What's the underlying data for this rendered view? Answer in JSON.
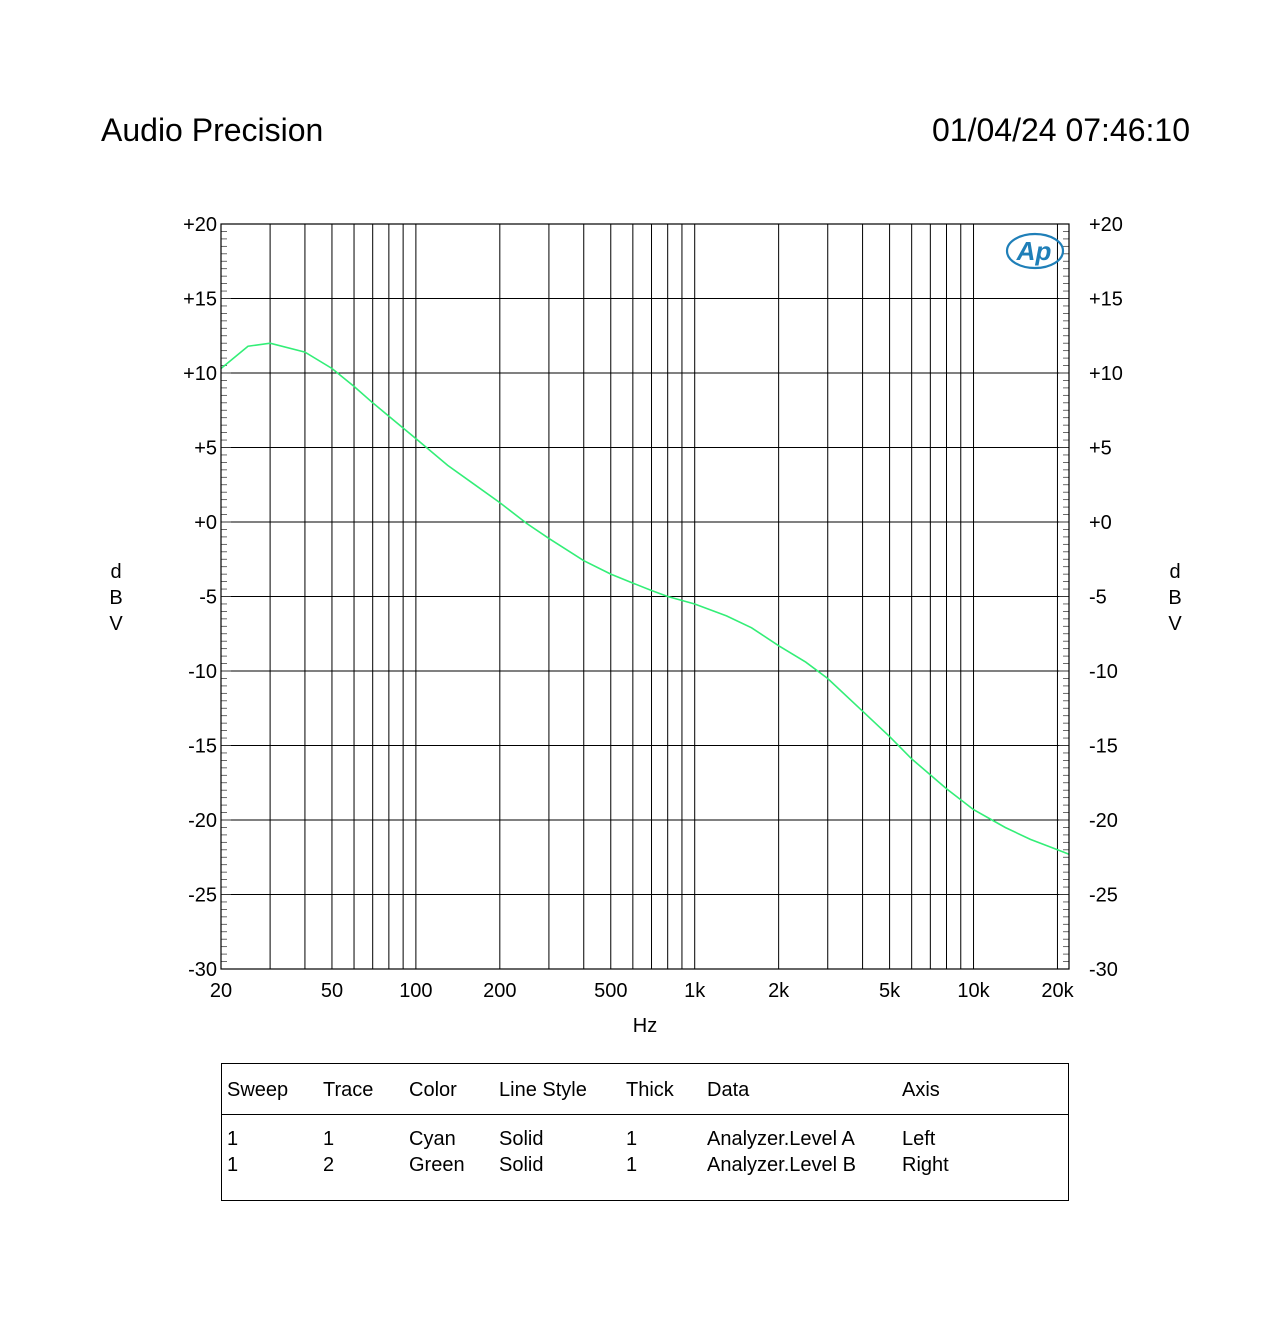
{
  "header": {
    "title": "Audio Precision",
    "datetime": "01/04/24 07:46:10"
  },
  "logo_text": "Ap",
  "chart_data": {
    "type": "line",
    "x_scale": "log",
    "xlim": [
      20,
      22000
    ],
    "ylim": [
      -30,
      20
    ],
    "xlabel": "Hz",
    "ylabel_left": "dBV",
    "ylabel_right": "dBV",
    "grid": true,
    "x_tick_labels": [
      {
        "value": 20,
        "label": "20"
      },
      {
        "value": 50,
        "label": "50"
      },
      {
        "value": 100,
        "label": "100"
      },
      {
        "value": 200,
        "label": "200"
      },
      {
        "value": 500,
        "label": "500"
      },
      {
        "value": 1000,
        "label": "1k"
      },
      {
        "value": 2000,
        "label": "2k"
      },
      {
        "value": 5000,
        "label": "5k"
      },
      {
        "value": 10000,
        "label": "10k"
      },
      {
        "value": 20000,
        "label": "20k"
      }
    ],
    "y_tick_labels": [
      {
        "value": 20,
        "label": "+20"
      },
      {
        "value": 15,
        "label": "+15"
      },
      {
        "value": 10,
        "label": "+10"
      },
      {
        "value": 5,
        "label": "+5"
      },
      {
        "value": 0,
        "label": "+0"
      },
      {
        "value": -5,
        "label": "-5"
      },
      {
        "value": -10,
        "label": "-10"
      },
      {
        "value": -15,
        "label": "-15"
      },
      {
        "value": -20,
        "label": "-20"
      },
      {
        "value": -25,
        "label": "-25"
      },
      {
        "value": -30,
        "label": "-30"
      }
    ],
    "series": [
      {
        "color": "#33ee77",
        "x": [
          20,
          25,
          30,
          40,
          50,
          60,
          70,
          80,
          100,
          130,
          160,
          200,
          250,
          300,
          400,
          500,
          600,
          700,
          800,
          1000,
          1300,
          1600,
          2000,
          2500,
          3000,
          4000,
          5000,
          6000,
          8000,
          10000,
          13000,
          16000,
          20000,
          22000
        ],
        "y": [
          10.3,
          11.8,
          12.0,
          11.4,
          10.3,
          9.1,
          8.0,
          7.1,
          5.6,
          3.8,
          2.6,
          1.3,
          -0.1,
          -1.1,
          -2.6,
          -3.5,
          -4.1,
          -4.6,
          -5.0,
          -5.5,
          -6.3,
          -7.1,
          -8.3,
          -9.4,
          -10.5,
          -12.7,
          -14.4,
          -15.9,
          -17.9,
          -19.3,
          -20.5,
          -21.3,
          -22.0,
          -22.3
        ]
      }
    ]
  },
  "legend": {
    "headers": {
      "sweep": "Sweep",
      "trace": "Trace",
      "color": "Color",
      "line_style": "Line Style",
      "thick": "Thick",
      "data": "Data",
      "axis": "Axis"
    },
    "rows": [
      {
        "sweep": "1",
        "trace": "1",
        "color": "Cyan",
        "line_style": "Solid",
        "thick": "1",
        "data": "Analyzer.Level A",
        "axis": "Left"
      },
      {
        "sweep": "1",
        "trace": "2",
        "color": "Green",
        "line_style": "Solid",
        "thick": "1",
        "data": "Analyzer.Level B",
        "axis": "Right"
      }
    ]
  }
}
